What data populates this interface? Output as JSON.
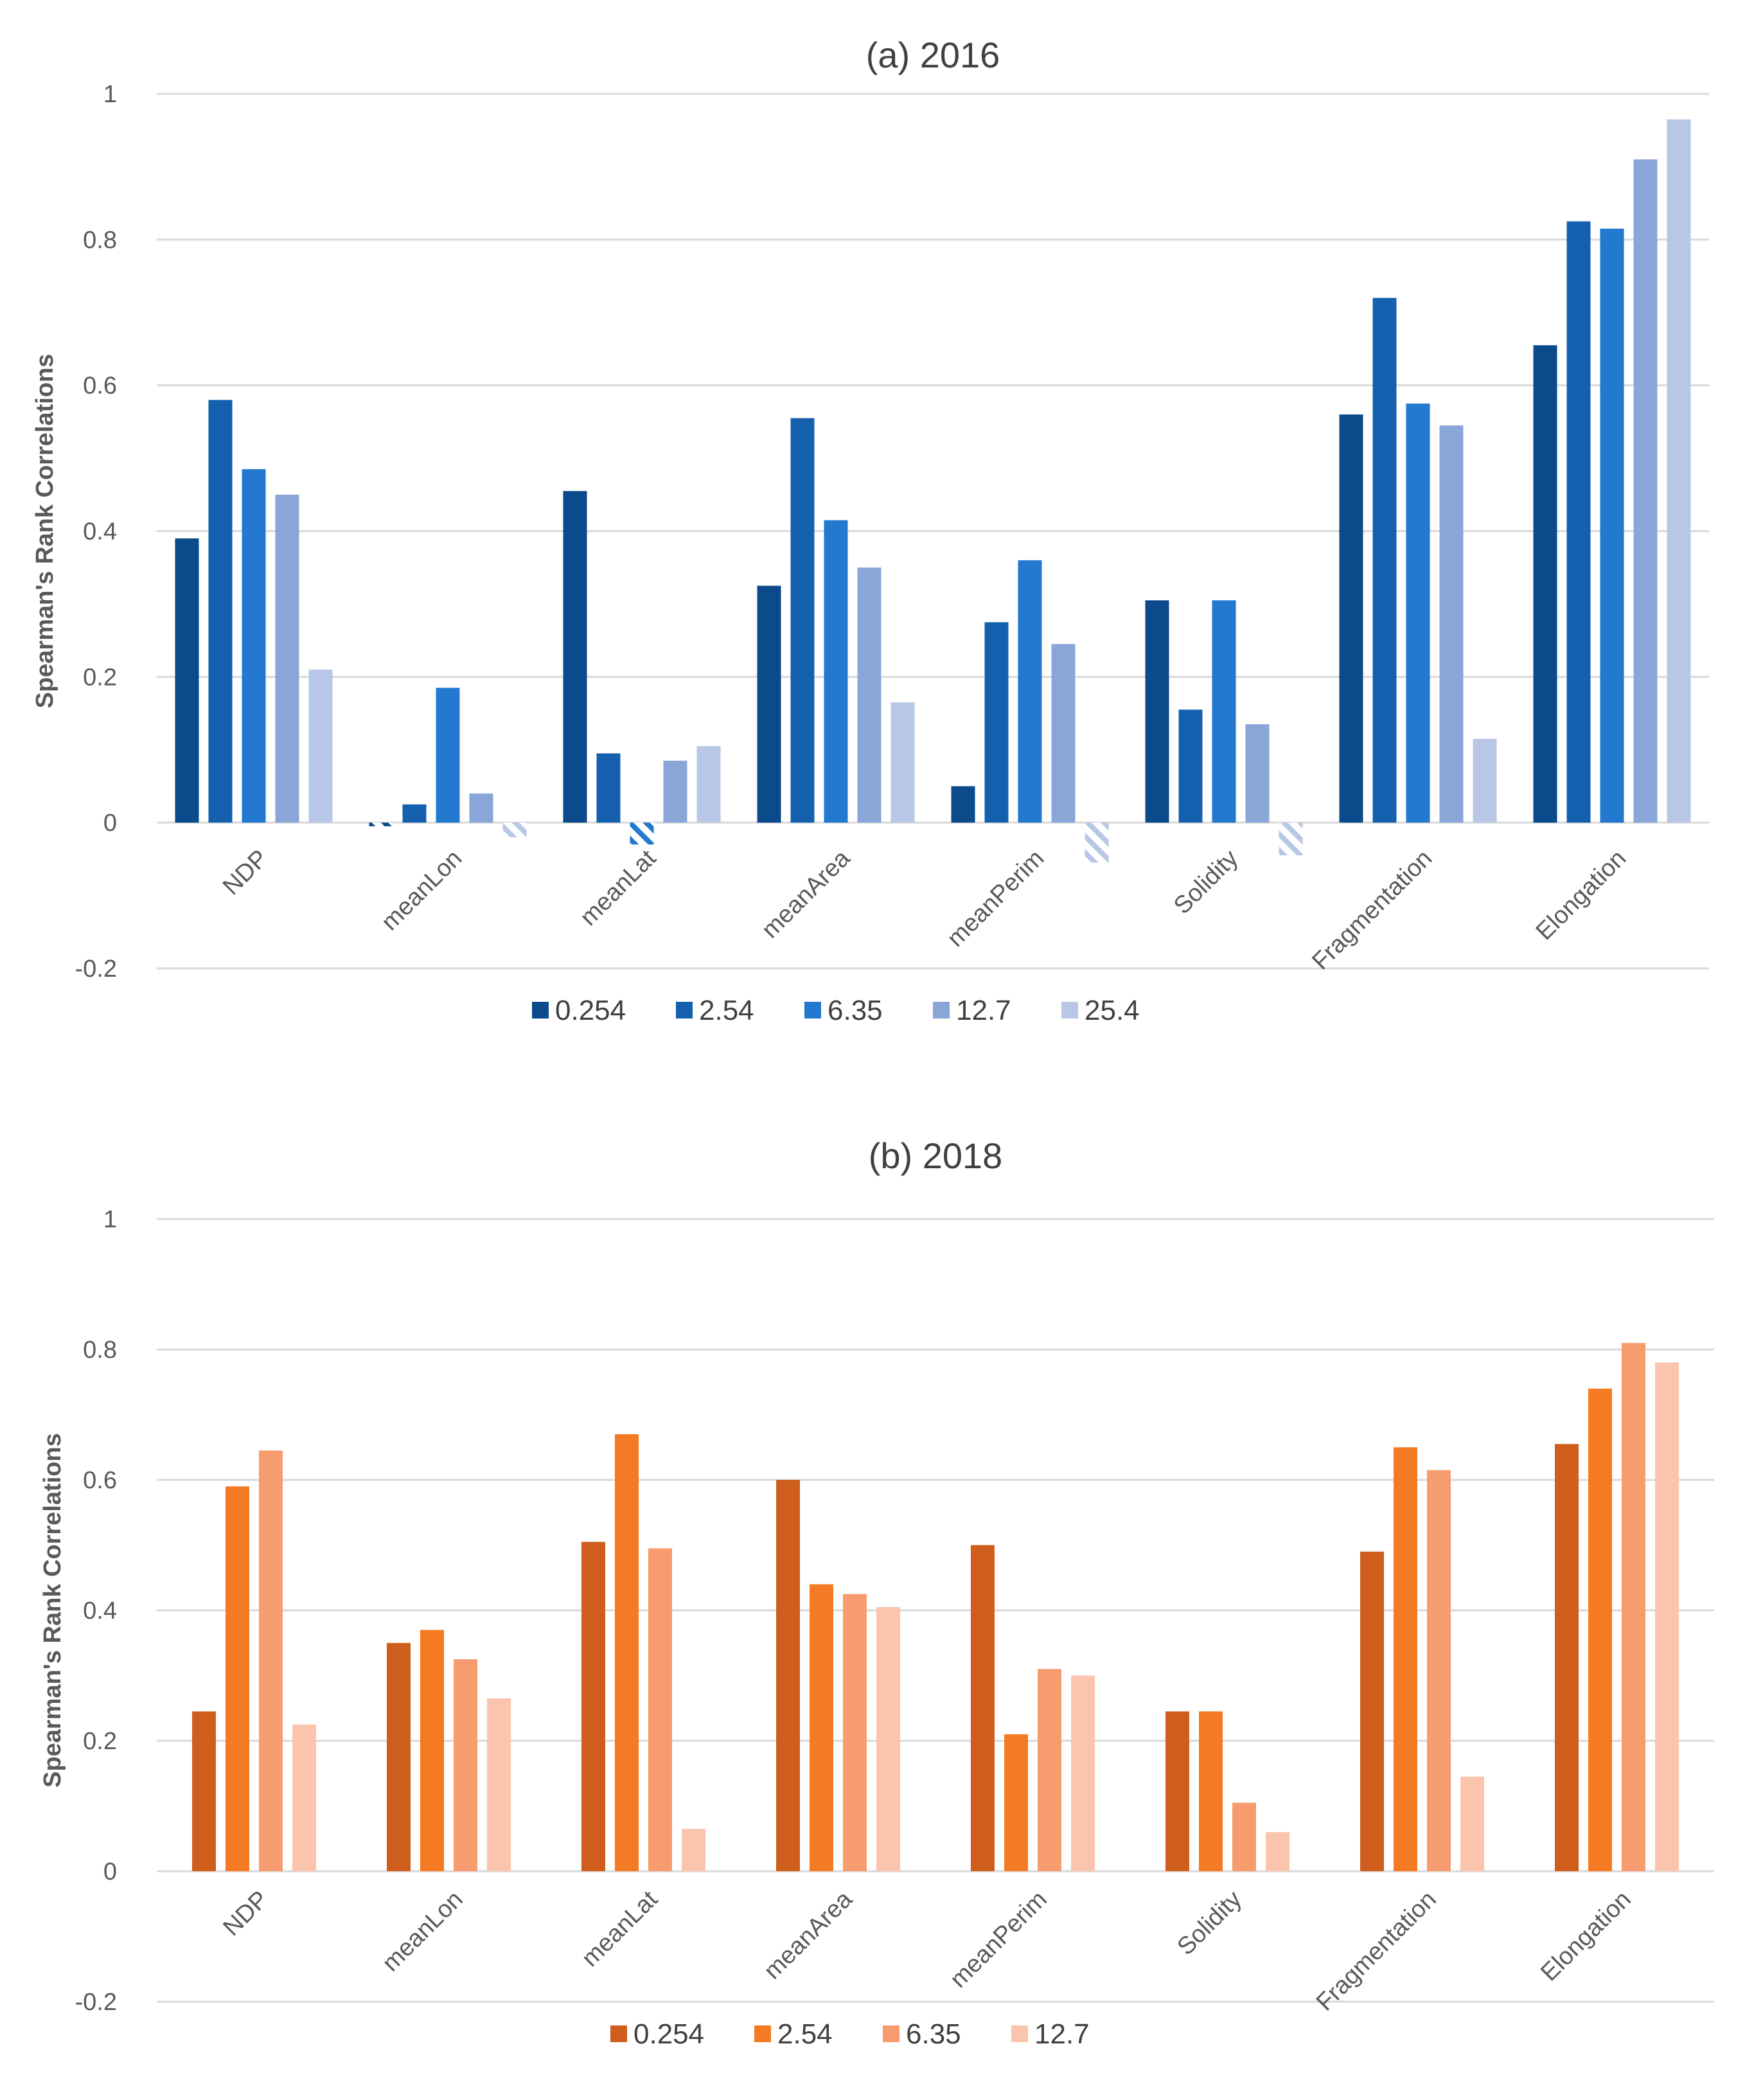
{
  "chart_data": [
    {
      "type": "bar",
      "title": "(a) 2016",
      "ylabel": "Spearman's Rank Correlations",
      "xlabel": "",
      "ylim": [
        -0.2,
        1
      ],
      "yticks": [
        1,
        0.8,
        0.6,
        0.4,
        0.2,
        0,
        -0.2
      ],
      "ytick_labels": [
        "1",
        "0.8",
        "0.6",
        "0.4",
        "0.2",
        "0",
        "-0.2"
      ],
      "grid": true,
      "legend_position": "bottom",
      "negative_bars_hatched": true,
      "categories": [
        "NDP",
        "meanLon",
        "meanLat",
        "meanArea",
        "meanPerim",
        "Solidity",
        "Fragmentation",
        "Elongation"
      ],
      "series": [
        {
          "name": "0.254",
          "color": "#0b4a8b",
          "values": [
            0.39,
            -0.005,
            0.455,
            0.325,
            0.05,
            0.305,
            0.56,
            0.655
          ]
        },
        {
          "name": "2.54",
          "color": "#1460ae",
          "values": [
            0.58,
            0.025,
            0.095,
            0.555,
            0.275,
            0.155,
            0.72,
            0.825
          ]
        },
        {
          "name": "6.35",
          "color": "#2379d0",
          "values": [
            0.485,
            0.185,
            -0.03,
            0.415,
            0.36,
            0.305,
            0.575,
            0.815
          ]
        },
        {
          "name": "12.7",
          "color": "#8aa6d8",
          "values": [
            0.45,
            0.04,
            0.085,
            0.35,
            0.245,
            0.135,
            0.545,
            0.91
          ]
        },
        {
          "name": "25.4",
          "color": "#b8c7e6",
          "values": [
            0.21,
            -0.02,
            0.105,
            0.165,
            -0.055,
            -0.045,
            0.115,
            0.965
          ]
        }
      ]
    },
    {
      "type": "bar",
      "title": "(b) 2018",
      "ylabel": "Spearman's Rank Correlations",
      "xlabel": "",
      "ylim": [
        -0.2,
        1
      ],
      "yticks": [
        1,
        0.8,
        0.6,
        0.4,
        0.2,
        0,
        -0.2
      ],
      "ytick_labels": [
        "1",
        "0.8",
        "0.6",
        "0.4",
        "0.2",
        "0",
        "-0.2"
      ],
      "grid": true,
      "legend_position": "bottom",
      "categories": [
        "NDP",
        "meanLon",
        "meanLat",
        "meanArea",
        "meanPerim",
        "Solidity",
        "Fragmentation",
        "Elongation"
      ],
      "series": [
        {
          "name": "0.254",
          "color": "#cf5e1d",
          "values": [
            0.245,
            0.35,
            0.505,
            0.6,
            0.5,
            0.245,
            0.49,
            0.655
          ]
        },
        {
          "name": "2.54",
          "color": "#f57a24",
          "values": [
            0.59,
            0.37,
            0.67,
            0.44,
            0.21,
            0.245,
            0.65,
            0.74
          ]
        },
        {
          "name": "6.35",
          "color": "#f79c6f",
          "values": [
            0.645,
            0.325,
            0.495,
            0.425,
            0.31,
            0.105,
            0.615,
            0.81
          ]
        },
        {
          "name": "12.7",
          "color": "#fbc5ad",
          "values": [
            0.225,
            0.265,
            0.065,
            0.405,
            0.3,
            0.06,
            0.145,
            0.78
          ]
        }
      ]
    }
  ]
}
